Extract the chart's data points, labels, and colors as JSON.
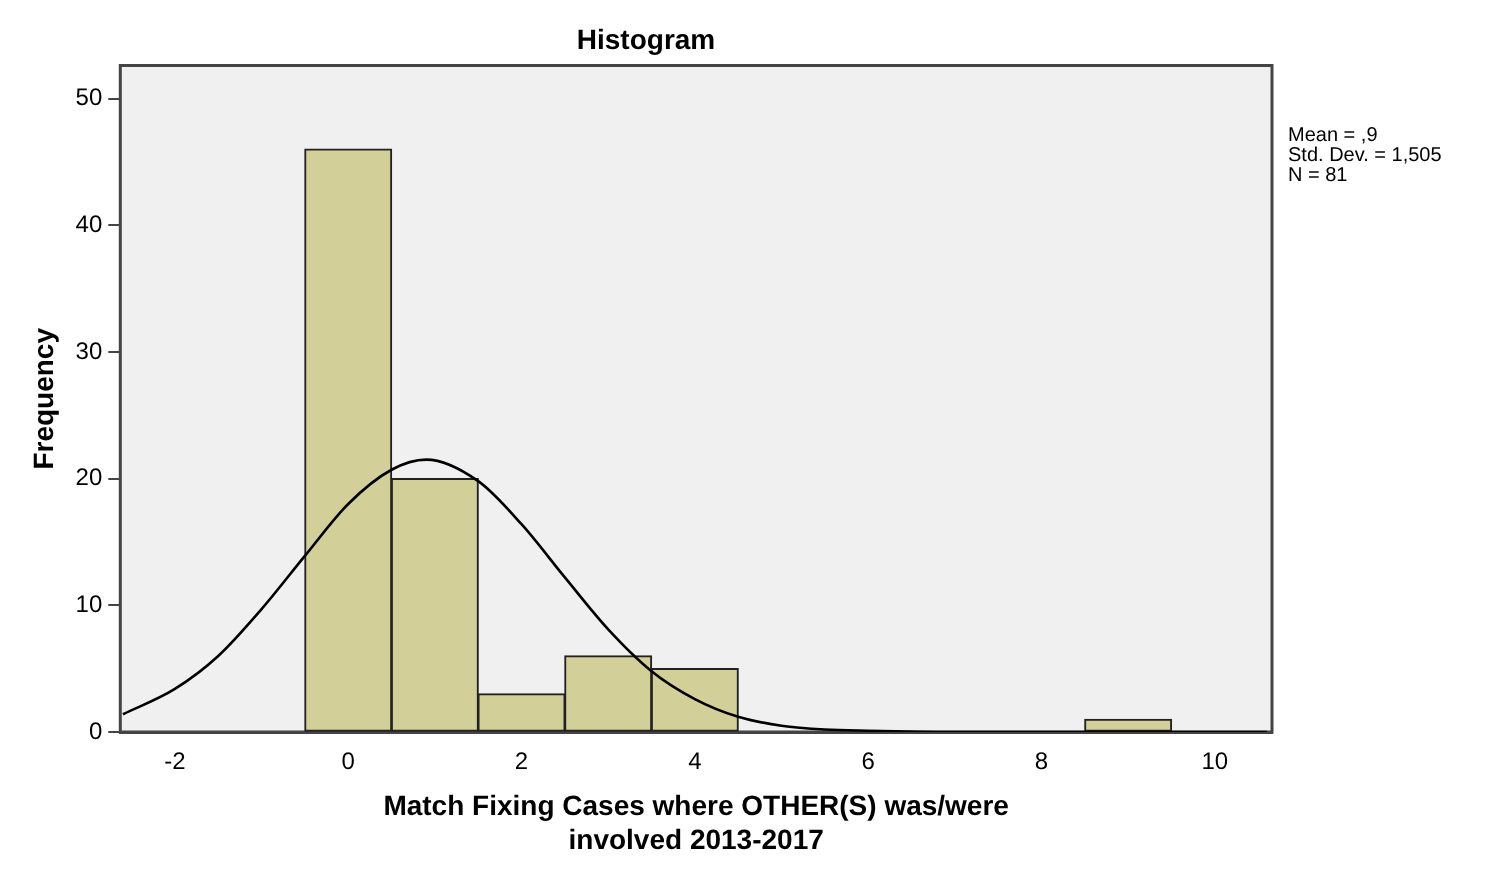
{
  "chart_data": {
    "type": "histogram",
    "title": "Histogram",
    "xlabel": "Match Fixing Cases where OTHER(S) was/were involved 2013-2017",
    "ylabel": "Frequency",
    "bins": [
      -0.5,
      0.5,
      1.5,
      2.5,
      3.5,
      4.5,
      5.5,
      6.5,
      7.5,
      8.5,
      9.5
    ],
    "series": [
      {
        "color": "#d3cf98",
        "values": [
          46,
          20,
          3,
          6,
          5,
          0,
          0,
          0,
          0,
          1
        ]
      },
      {
        "type": "line",
        "color": "#000000",
        "x": [
          -2.6,
          -2,
          -1.5,
          -1,
          -0.5,
          0,
          0.5,
          0.9,
          1.5,
          2,
          2.5,
          3,
          3.5,
          4,
          4.5,
          5,
          5.5,
          6,
          7,
          8,
          9,
          10,
          10.6
        ],
        "values": [
          1.4,
          3.4,
          6,
          9.7,
          13.9,
          18,
          20.7,
          21.5,
          19.8,
          16.4,
          12.2,
          8.1,
          4.8,
          2.6,
          1.2,
          0.5,
          0.2,
          0.1,
          0,
          0,
          0,
          0,
          0
        ]
      }
    ],
    "xlim": [
      -2.63,
      10.66
    ],
    "xticks": [
      -2,
      0,
      2,
      4,
      6,
      8,
      10
    ],
    "ylim": [
      0,
      52.6
    ],
    "yticks": [
      0,
      10,
      20,
      30,
      40,
      50
    ],
    "grid": false,
    "legend": false,
    "marker": "none",
    "line_style": "solid",
    "annotations": [
      "Mean = ,9",
      "Std. Dev. = 1,505",
      "N = 81"
    ]
  }
}
